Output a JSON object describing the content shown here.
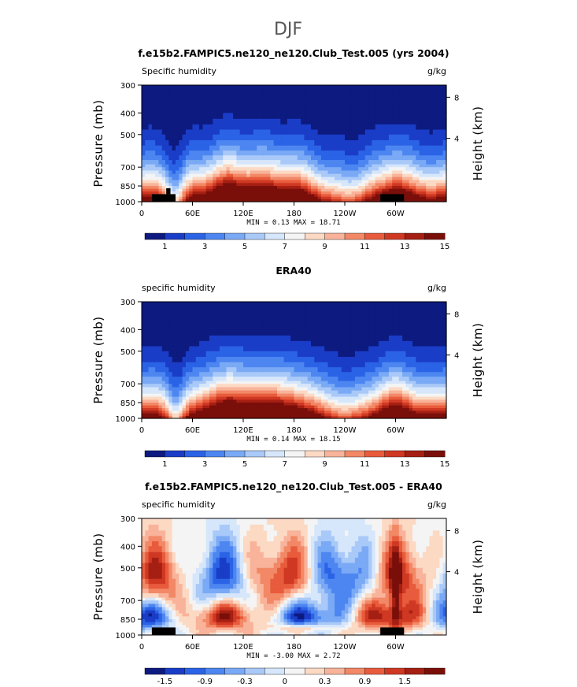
{
  "figure": {
    "season_title": "DJF"
  },
  "colors": {
    "scale": [
      "#0d1a80",
      "#1a3dc7",
      "#2b63e6",
      "#4d86f0",
      "#7aa9f5",
      "#a9c9f8",
      "#d6e6fb",
      "#f4f4f4",
      "#fcd9c3",
      "#f8b39a",
      "#f28866",
      "#e85b3c",
      "#cf3822",
      "#a51f13",
      "#7a0f0a"
    ],
    "mask": "#000000"
  },
  "chart_data": [
    {
      "type": "heatmap",
      "title": "f.e15b2.FAMPIC5.ne120_ne120.Club_Test.005 (yrs 2004)",
      "field_label": "Specific humidity",
      "units": "g/kg",
      "ylabel": "Pressure (mb)",
      "ylabel_right": "Height (km)",
      "x_ticks": [
        "0",
        "60E",
        "120E",
        "180",
        "120W",
        "60W"
      ],
      "y_ticks": [
        "300",
        "400",
        "500",
        "700",
        "850",
        "1000"
      ],
      "y_ticks_right": [
        "8",
        "4"
      ],
      "min_max": "MIN =    0.13  MAX =   18.71",
      "min": 0.13,
      "max": 18.71,
      "colorbar_labels": [
        "1",
        "3",
        "5",
        "7",
        "9",
        "11",
        "13",
        "15"
      ],
      "colorbar_range": [
        0,
        16
      ]
    },
    {
      "type": "heatmap",
      "title": "ERA40",
      "field_label": "specific humidity",
      "units": "g/kg",
      "ylabel": "Pressure (mb)",
      "ylabel_right": "Height (km)",
      "x_ticks": [
        "0",
        "60E",
        "120E",
        "180",
        "120W",
        "60W"
      ],
      "y_ticks": [
        "300",
        "400",
        "500",
        "700",
        "850",
        "1000"
      ],
      "y_ticks_right": [
        "8",
        "4"
      ],
      "min_max": "MIN =    0.14  MAX =   18.15",
      "min": 0.14,
      "max": 18.15,
      "colorbar_labels": [
        "1",
        "3",
        "5",
        "7",
        "9",
        "11",
        "13",
        "15"
      ],
      "colorbar_range": [
        0,
        16
      ]
    },
    {
      "type": "heatmap",
      "title": "f.e15b2.FAMPIC5.ne120_ne120.Club_Test.005 - ERA40",
      "field_label": "specific humidity",
      "units": "g/kg",
      "ylabel": "Pressure (mb)",
      "ylabel_right": "Height (km)",
      "x_ticks": [
        "0",
        "60E",
        "120E",
        "180",
        "120W",
        "60W"
      ],
      "y_ticks": [
        "300",
        "400",
        "500",
        "700",
        "850",
        "1000"
      ],
      "y_ticks_right": [
        "8",
        "4"
      ],
      "min_max": "MIN =   -3.00  MAX =    2.72",
      "min": -3.0,
      "max": 2.72,
      "colorbar_labels": [
        "-1.5",
        "-0.9",
        "-0.3",
        "0",
        "0.3",
        "0.9",
        "1.5"
      ],
      "colorbar_range": [
        -2.1,
        2.1
      ]
    }
  ]
}
